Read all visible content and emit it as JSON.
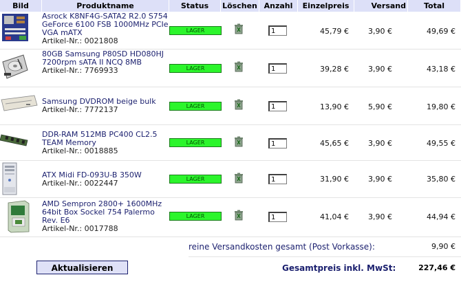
{
  "headers": {
    "bild": "Bild",
    "produktname": "Produktname",
    "status": "Status",
    "loeschen": "Löschen",
    "anzahl": "Anzahl",
    "einzelpreis": "Einzelpreis",
    "versand": "Versand",
    "total": "Total"
  },
  "items": [
    {
      "image_icon": "motherboard-image",
      "name": "Asrock K8NF4G-SATA2 R2.0 S754 GeForce 6100 FSB 1000MHz PCIe VGA mATX",
      "article": "Artikel-Nr.: 0021808",
      "status": "LAGER",
      "qty": "1",
      "unit_price": "45,79 €",
      "shipping": "3,90 €",
      "total": "49,69 €"
    },
    {
      "image_icon": "hard-drive-image",
      "name": "80GB Samsung P80SD HD080HJ 7200rpm sATA II NCQ 8MB",
      "article": "Artikel-Nr.: 7769933",
      "status": "LAGER",
      "qty": "1",
      "unit_price": "39,28 €",
      "shipping": "3,90 €",
      "total": "43,18 €"
    },
    {
      "image_icon": "dvd-drive-image",
      "name": "Samsung DVDROM beige bulk",
      "article": "Artikel-Nr.: 7772137",
      "status": "LAGER",
      "qty": "1",
      "unit_price": "13,90 €",
      "shipping": "5,90 €",
      "total": "19,80 €"
    },
    {
      "image_icon": "ram-module-image",
      "name": "DDR-RAM 512MB PC400 CL2.5 TEAM Memory",
      "article": "Artikel-Nr.: 0018885",
      "status": "LAGER",
      "qty": "1",
      "unit_price": "45,65 €",
      "shipping": "3,90 €",
      "total": "49,55 €"
    },
    {
      "image_icon": "pc-case-image",
      "name": "ATX Midi FD-093U-B 350W",
      "article": "Artikel-Nr.: 0022447",
      "status": "LAGER",
      "qty": "1",
      "unit_price": "31,90 €",
      "shipping": "3,90 €",
      "total": "35,80 €"
    },
    {
      "image_icon": "cpu-box-image",
      "name": "AMD Sempron 2800+ 1600MHz 64bit Box Sockel 754 Palermo Rev. E6",
      "article": "Artikel-Nr.: 0017788",
      "status": "LAGER",
      "qty": "1",
      "unit_price": "41,04 €",
      "shipping": "3,90 €",
      "total": "44,94 €"
    }
  ],
  "summary": {
    "shipping_label": "reine Versandkosten gesamt (Post Vorkasse):",
    "shipping_value": "9,90 €",
    "total_label": "Gesamtpreis inkl. MwSt:",
    "total_value": "227,46 €"
  },
  "update_button": "Aktualisieren",
  "colors": {
    "header_bg": "#dde0f8",
    "status_green": "#2cf52c",
    "text_navy": "#1a1f6e"
  }
}
